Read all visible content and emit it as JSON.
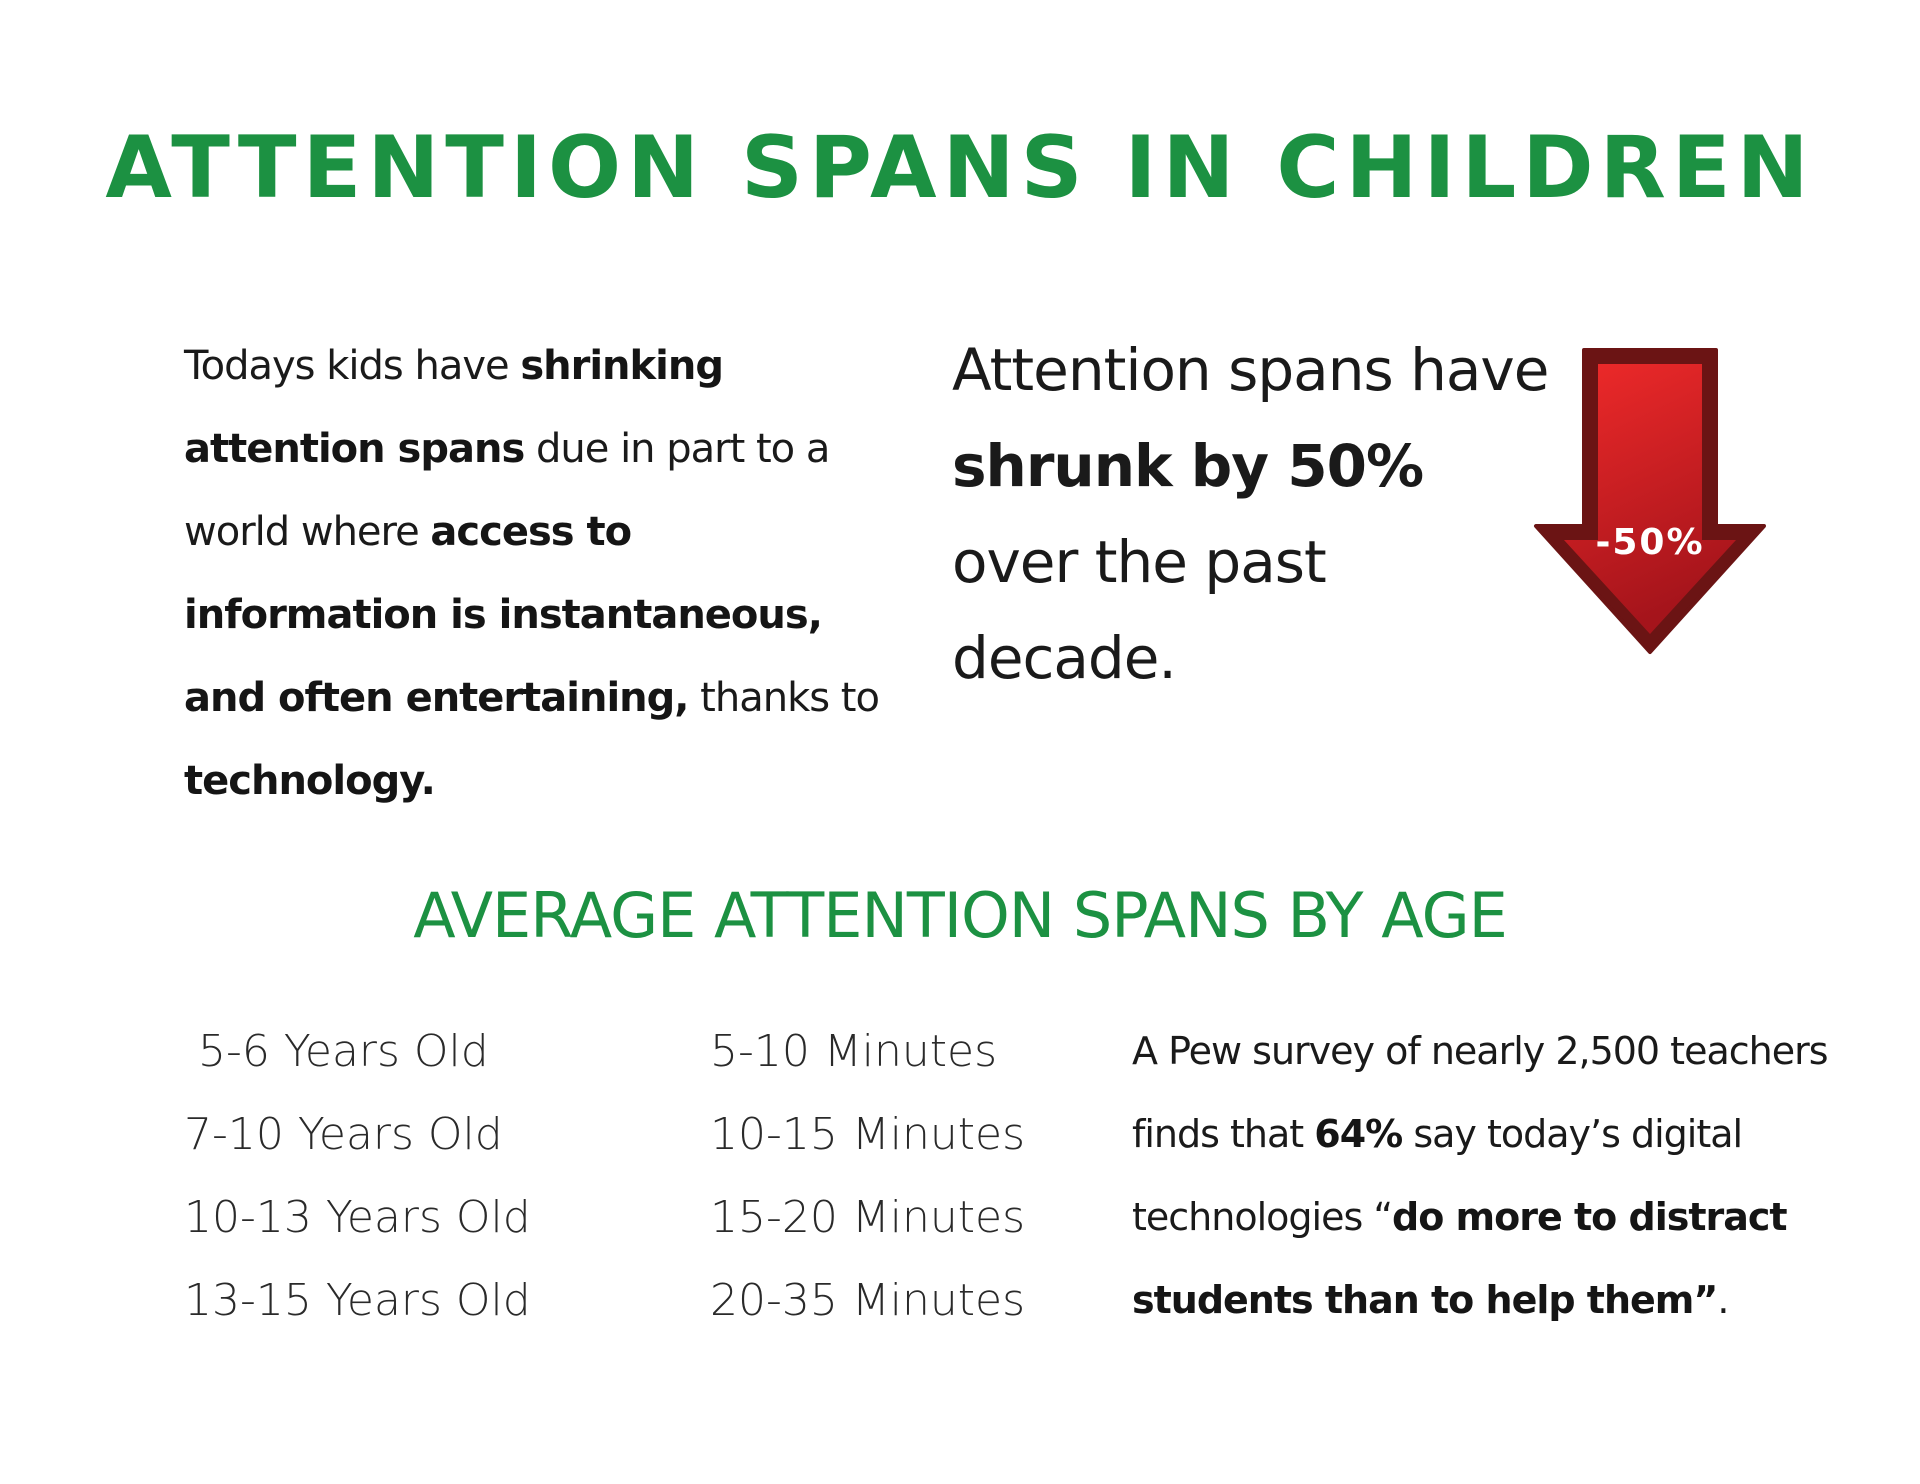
{
  "title": "ATTENTION SPANS IN CHILDREN",
  "intro": {
    "t1": "Todays kids have ",
    "b1": "shrinking attention spans",
    "t2": " due in part to a world where ",
    "b2": "access to information is instantaneous, and often entertaining,",
    "t3": " thanks to ",
    "b3": "technology."
  },
  "stat": {
    "t1": "Attention spans have ",
    "b1": "shrunk by 50%",
    "t2": " over the past decade."
  },
  "arrow": {
    "label": "-50%",
    "icon": "down-arrow-icon",
    "colors": {
      "fill_top": "#e8242a",
      "fill_bottom": "#a5141b",
      "outline": "#6b1414"
    }
  },
  "subtitle": "AVERAGE ATTENTION SPANS BY AGE",
  "table": {
    "ages": [
      "5-6 Years Old",
      "7-10 Years Old",
      "10-13 Years Old",
      "13-15 Years Old"
    ],
    "minutes": [
      "5-10 Minutes",
      "10-15 Minutes",
      "15-20 Minutes",
      "20-35 Minutes"
    ]
  },
  "pew": {
    "t1": "A Pew survey of nearly 2,500 teachers finds that ",
    "b1": "64%",
    "t2": " say today’s digital technologies “",
    "b2": "do more to distract students than to help them”",
    "t3": "."
  },
  "colors": {
    "accent_green": "#1c9142",
    "text_dark": "#1a1a1a"
  }
}
